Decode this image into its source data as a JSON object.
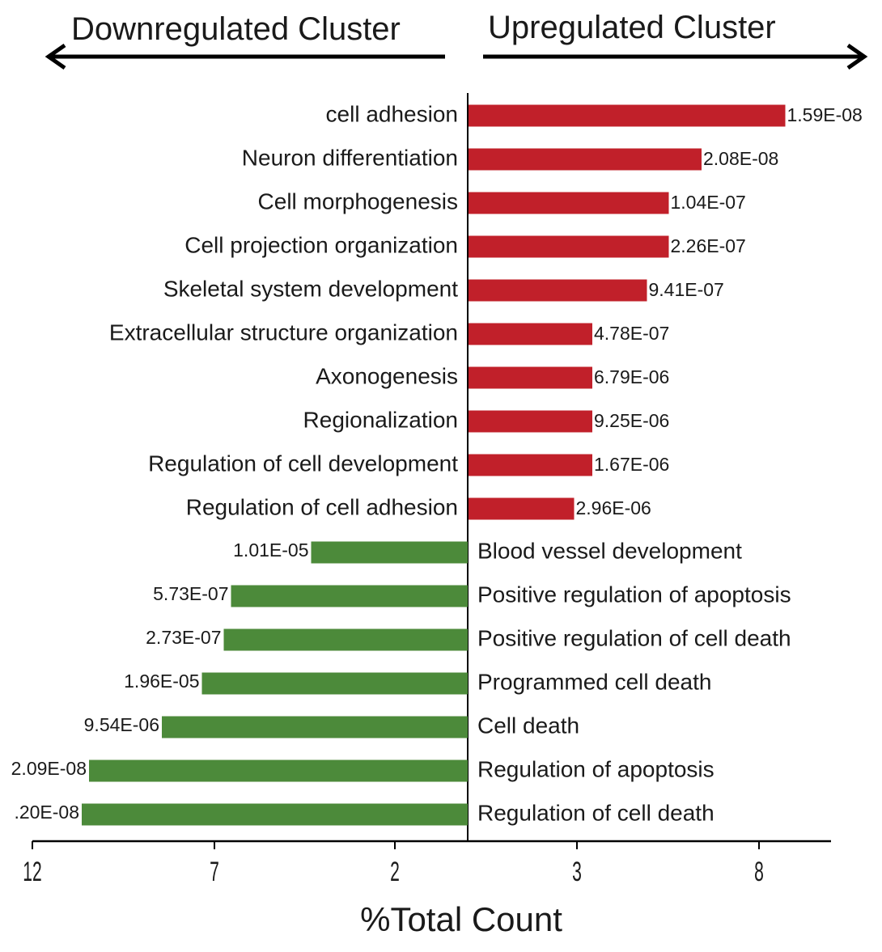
{
  "headers": {
    "left": "Downregulated Cluster",
    "right": "Upregulated Cluster"
  },
  "colors": {
    "up": "#c1202a",
    "down": "#4c8a3a",
    "text": "#1a1a1a"
  },
  "chart_data": {
    "type": "bar",
    "orientation": "horizontal-diverging",
    "xlabel": "%Total Count",
    "xtick_labels": [
      "12",
      "7",
      "2",
      "3",
      "8"
    ],
    "xlim_down": [
      12,
      0
    ],
    "xlim_up": [
      0,
      10
    ],
    "grid": false,
    "series": [
      {
        "name": "Upregulated Cluster",
        "categories": [
          "cell adhesion",
          "Neuron differentiation",
          "Cell morphogenesis",
          "Cell projection organization",
          "Skeletal system development",
          "Extracellular structure organization",
          "Axonogenesis",
          "Regionalization",
          "Regulation of cell development",
          "Regulation of cell adhesion"
        ],
        "values": [
          8.7,
          6.4,
          5.5,
          5.5,
          4.9,
          3.4,
          3.4,
          3.4,
          3.4,
          2.9
        ],
        "labels": [
          "1.59E-08",
          "2.08E-08",
          "1.04E-07",
          "2.26E-07",
          "9.41E-07",
          "4.78E-07",
          "6.79E-06",
          "9.25E-06",
          "1.67E-06",
          "2.96E-06"
        ]
      },
      {
        "name": "Downregulated Cluster",
        "categories": [
          "Blood vessel development",
          "Positive regulation of apoptosis",
          "Positive regulation of cell death",
          "Programmed cell death",
          "Cell death",
          "Regulation of apoptosis",
          "Regulation of cell death"
        ],
        "values": [
          4.3,
          6.5,
          6.7,
          7.3,
          8.4,
          10.4,
          10.6
        ],
        "labels": [
          "1.01E-05",
          "5.73E-07",
          "2.73E-07",
          "1.96E-05",
          "9.54E-06",
          "2.09E-08",
          ".20E-08"
        ]
      }
    ]
  }
}
